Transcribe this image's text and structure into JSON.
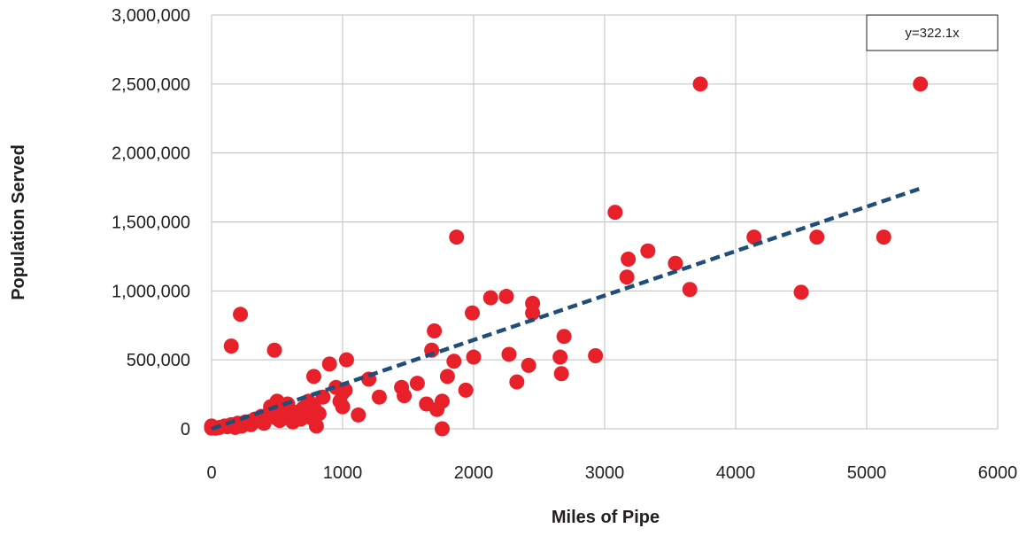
{
  "chart_data": {
    "type": "scatter",
    "title": "",
    "xlabel": "Miles of Pipe",
    "ylabel": "Population Served",
    "xlim": [
      0,
      6000
    ],
    "ylim": [
      0,
      3000000
    ],
    "x_ticks": [
      "0",
      "1000",
      "2000",
      "3000",
      "4000",
      "5000",
      "6000"
    ],
    "y_ticks": [
      "0",
      "500,000",
      "1,000,000",
      "1,500,000",
      "2,000,000",
      "2,500,000",
      "3,000,000"
    ],
    "grid": true,
    "colors": {
      "points": "#e8202a",
      "trend": "#1f4e79",
      "grid": "#bfbfbf",
      "text": "#231f20"
    },
    "trendline": {
      "equation": "y=322.1x",
      "slope": 322.1,
      "x_range": [
        0,
        5400
      ],
      "style": "dashed"
    },
    "series": [
      {
        "points": [
          [
            0,
            20000
          ],
          [
            0,
            5000
          ],
          [
            30,
            5000
          ],
          [
            60,
            10000
          ],
          [
            100,
            20000
          ],
          [
            120,
            15000
          ],
          [
            150,
            30000
          ],
          [
            180,
            10000
          ],
          [
            200,
            40000
          ],
          [
            230,
            20000
          ],
          [
            260,
            50000
          ],
          [
            300,
            30000
          ],
          [
            330,
            70000
          ],
          [
            360,
            60000
          ],
          [
            380,
            90000
          ],
          [
            400,
            40000
          ],
          [
            430,
            100000
          ],
          [
            450,
            160000
          ],
          [
            470,
            120000
          ],
          [
            490,
            80000
          ],
          [
            500,
            200000
          ],
          [
            520,
            60000
          ],
          [
            540,
            140000
          ],
          [
            560,
            90000
          ],
          [
            580,
            180000
          ],
          [
            600,
            100000
          ],
          [
            620,
            50000
          ],
          [
            650,
            120000
          ],
          [
            680,
            70000
          ],
          [
            700,
            150000
          ],
          [
            720,
            110000
          ],
          [
            740,
            200000
          ],
          [
            760,
            80000
          ],
          [
            780,
            160000
          ],
          [
            800,
            20000
          ],
          [
            820,
            110000
          ],
          [
            850,
            230000
          ],
          [
            950,
            300000
          ],
          [
            980,
            200000
          ],
          [
            1000,
            260000
          ],
          [
            1020,
            280000
          ],
          [
            150,
            600000
          ],
          [
            220,
            830000
          ],
          [
            480,
            570000
          ],
          [
            780,
            380000
          ],
          [
            900,
            470000
          ],
          [
            1000,
            160000
          ],
          [
            1030,
            500000
          ],
          [
            1120,
            100000
          ],
          [
            1200,
            360000
          ],
          [
            1280,
            230000
          ],
          [
            1450,
            300000
          ],
          [
            1470,
            240000
          ],
          [
            1570,
            330000
          ],
          [
            1640,
            180000
          ],
          [
            1680,
            570000
          ],
          [
            1700,
            710000
          ],
          [
            1720,
            140000
          ],
          [
            1760,
            200000
          ],
          [
            1760,
            0
          ],
          [
            1800,
            380000
          ],
          [
            1850,
            490000
          ],
          [
            1870,
            1390000
          ],
          [
            1940,
            280000
          ],
          [
            1990,
            840000
          ],
          [
            2000,
            520000
          ],
          [
            2130,
            950000
          ],
          [
            2250,
            960000
          ],
          [
            2270,
            540000
          ],
          [
            2330,
            340000
          ],
          [
            2420,
            460000
          ],
          [
            2450,
            910000
          ],
          [
            2450,
            840000
          ],
          [
            2660,
            520000
          ],
          [
            2670,
            400000
          ],
          [
            2690,
            670000
          ],
          [
            2930,
            530000
          ],
          [
            3080,
            1570000
          ],
          [
            3170,
            1100000
          ],
          [
            3180,
            1230000
          ],
          [
            3330,
            1290000
          ],
          [
            3540,
            1200000
          ],
          [
            3650,
            1010000
          ],
          [
            3730,
            2500000
          ],
          [
            4140,
            1390000
          ],
          [
            4500,
            990000
          ],
          [
            4620,
            1390000
          ],
          [
            5130,
            1390000
          ],
          [
            5410,
            2500000
          ]
        ]
      }
    ]
  }
}
